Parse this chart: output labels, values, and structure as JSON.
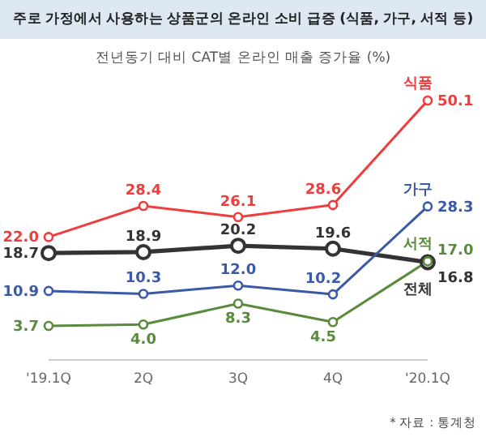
{
  "chart_data": {
    "type": "line",
    "title": "주로 가정에서 사용하는 상품군의 온라인 소비 급증 (식품, 가구, 서적 등)",
    "subtitle": "전년동기 대비 CAT별 온라인 매출 증가율 (%)",
    "annotations": [
      "* 자료 : 통계청"
    ],
    "categories": [
      "'19.1Q",
      "2Q",
      "3Q",
      "4Q",
      "'20.1Q"
    ],
    "series": [
      {
        "name": "식품",
        "color": "#f03c3c",
        "values": [
          22.0,
          28.4,
          26.1,
          28.6,
          50.1
        ],
        "value_labels": [
          "22.0",
          "28.4",
          "26.1",
          "28.6",
          "50.1"
        ]
      },
      {
        "name": "전체",
        "color": "#333333",
        "values": [
          18.7,
          18.9,
          20.2,
          19.6,
          16.8
        ],
        "value_labels": [
          "18.7",
          "18.9",
          "20.2",
          "19.6",
          "16.8"
        ]
      },
      {
        "name": "가구",
        "color": "#3a5aa8",
        "values": [
          10.9,
          10.3,
          12.0,
          10.2,
          28.3
        ],
        "value_labels": [
          "10.9",
          "10.3",
          "12.0",
          "10.2",
          "28.3"
        ]
      },
      {
        "name": "서적",
        "color": "#5a8a3c",
        "values": [
          3.7,
          4.0,
          8.3,
          4.5,
          17.0
        ],
        "value_labels": [
          "3.7",
          "4.0",
          "8.3",
          "4.5",
          "17.0"
        ]
      }
    ],
    "legend": false,
    "marker": "circle",
    "line_style": "solid"
  }
}
